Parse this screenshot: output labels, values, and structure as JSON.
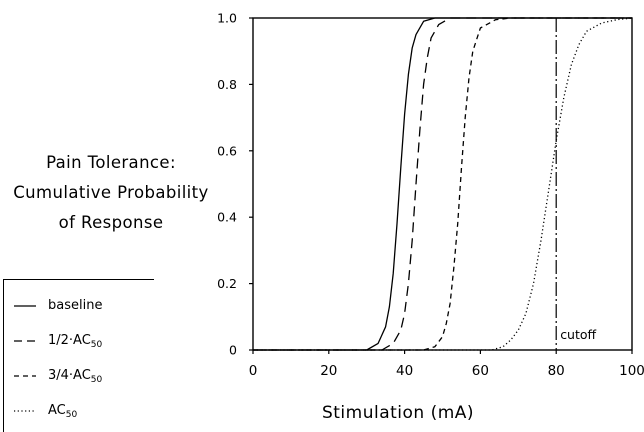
{
  "chart_data": {
    "type": "line",
    "title": "",
    "xlabel": "Stimulation (mA)",
    "ylabel_lines": [
      "Pain Tolerance:",
      "Cumulative Probability",
      "of Response"
    ],
    "xlim": [
      0,
      100
    ],
    "ylim": [
      0,
      1.0
    ],
    "xticks": [
      0,
      20,
      40,
      60,
      80,
      100
    ],
    "xtick_labels": [
      "0",
      "20",
      "40",
      "60",
      "80",
      "100"
    ],
    "yticks": [
      0,
      0.2,
      0.4,
      0.6,
      0.8,
      1.0
    ],
    "ytick_labels": [
      "0",
      "0.2",
      "0.4",
      "0.6",
      "0.8",
      "1.0"
    ],
    "grid": false,
    "legend_position": "bottom-left",
    "annotations": [
      {
        "text": "cutoff",
        "x": 80
      }
    ],
    "vertical_line_x": 80,
    "series": [
      {
        "name": "baseline",
        "style": "solid",
        "x": [
          30,
          33,
          35,
          36,
          37,
          38,
          39,
          40,
          41,
          42,
          43,
          45,
          48,
          52,
          100
        ],
        "y": [
          0,
          0.02,
          0.07,
          0.13,
          0.23,
          0.38,
          0.55,
          0.71,
          0.83,
          0.91,
          0.95,
          0.99,
          1.0,
          1.0,
          1.0
        ]
      },
      {
        "name": "1/2·AC50",
        "style": "long-dash",
        "x": [
          34,
          37,
          39,
          40,
          41,
          42,
          43,
          44,
          45,
          46,
          47,
          49,
          52,
          56,
          100
        ],
        "y": [
          0,
          0.02,
          0.06,
          0.11,
          0.2,
          0.33,
          0.5,
          0.66,
          0.8,
          0.88,
          0.94,
          0.98,
          1.0,
          1.0,
          1.0
        ]
      },
      {
        "name": "3/4·AC50",
        "style": "short-dash",
        "x": [
          45,
          48,
          50,
          51,
          52,
          53,
          54,
          55,
          56,
          57,
          58,
          60,
          64,
          68,
          100
        ],
        "y": [
          0,
          0.01,
          0.04,
          0.08,
          0.14,
          0.25,
          0.38,
          0.55,
          0.7,
          0.82,
          0.9,
          0.97,
          0.995,
          1.0,
          1.0
        ]
      },
      {
        "name": "AC50",
        "style": "dotted",
        "x": [
          63,
          66,
          68,
          70,
          72,
          74,
          76,
          78,
          80,
          82,
          84,
          86,
          88,
          92,
          96,
          100
        ],
        "y": [
          0,
          0.01,
          0.03,
          0.06,
          0.11,
          0.2,
          0.33,
          0.48,
          0.63,
          0.76,
          0.86,
          0.92,
          0.96,
          0.985,
          0.995,
          1.0
        ]
      }
    ]
  },
  "legend": {
    "items": [
      {
        "label": "baseline",
        "sub": "",
        "style": "solid"
      },
      {
        "label": "1/2·AC",
        "sub": "50",
        "style": "long-dash"
      },
      {
        "label": "3/4·AC",
        "sub": "50",
        "style": "short-dash"
      },
      {
        "label": "AC",
        "sub": "50",
        "style": "dotted"
      }
    ]
  }
}
